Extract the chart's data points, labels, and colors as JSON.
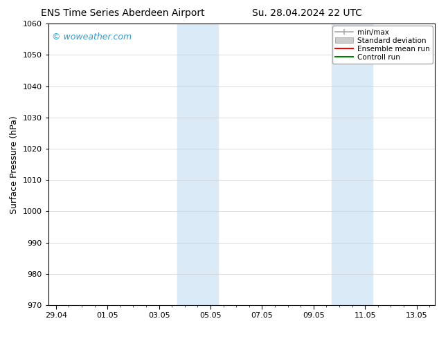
{
  "title_left": "ENS Time Series Aberdeen Airport",
  "title_right": "Su. 28.04.2024 22 UTC",
  "ylabel": "Surface Pressure (hPa)",
  "ylim_bottom": 970,
  "ylim_top": 1060,
  "yticks": [
    970,
    980,
    990,
    1000,
    1010,
    1020,
    1030,
    1040,
    1050,
    1060
  ],
  "xtick_labels": [
    "29.04",
    "01.05",
    "03.05",
    "05.05",
    "07.05",
    "09.05",
    "11.05",
    "13.05"
  ],
  "xtick_positions": [
    0,
    2,
    4,
    6,
    8,
    10,
    12,
    14
  ],
  "xlim": [
    -0.3,
    14.7
  ],
  "shaded_bands": [
    {
      "xmin": 4.7,
      "xmax": 6.3
    },
    {
      "xmin": 10.7,
      "xmax": 12.3
    }
  ],
  "shade_color": "#daeaf7",
  "watermark_text": "© woweather.com",
  "watermark_color": "#3399cc",
  "legend_items": [
    {
      "label": "min/max",
      "color": "#aaaaaa",
      "style": "errbar"
    },
    {
      "label": "Standard deviation",
      "color": "#cccccc",
      "style": "rect"
    },
    {
      "label": "Ensemble mean run",
      "color": "red",
      "style": "line"
    },
    {
      "label": "Controll run",
      "color": "green",
      "style": "line"
    }
  ],
  "bg_color": "#ffffff",
  "spine_color": "#000000",
  "title_fontsize": 10,
  "ylabel_fontsize": 9,
  "tick_fontsize": 8,
  "legend_fontsize": 7.5,
  "watermark_fontsize": 9
}
